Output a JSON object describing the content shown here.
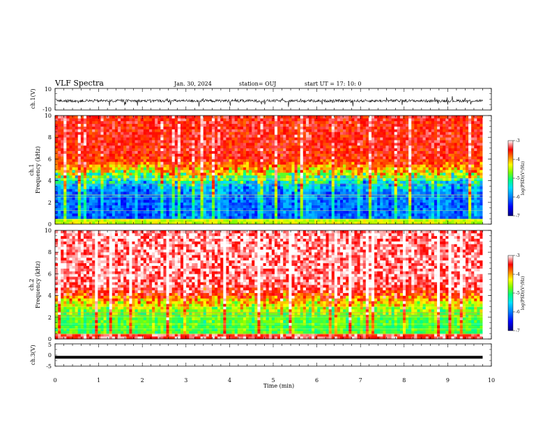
{
  "header": {
    "title": "VLF Spectra",
    "date": "Jan. 30, 2024",
    "station": "station= OUJ",
    "start_ut": "start  UT  =   17: 10: 0"
  },
  "chart_data": [
    {
      "type": "line",
      "panel": "ch1-waveform",
      "ylabel": "ch.1(V)",
      "yticklabels": [
        "10",
        "-10"
      ],
      "ylim": [
        -10,
        10
      ],
      "color": "#000000",
      "baseline": -1.5,
      "noise_amplitude": 2.5,
      "xlim": [
        0,
        10
      ]
    },
    {
      "type": "heatmap",
      "panel": "ch1-spectrogram",
      "ylabel": "ch.1\nFrequency (kHz)",
      "yticklabels": [
        "0",
        "2",
        "4",
        "6",
        "8",
        "10"
      ],
      "ylim": [
        0,
        10
      ],
      "xlim": [
        0,
        9.8
      ],
      "description_values": {
        "high_band_log_psd": -3.5,
        "low_band_log_psd": -6.2,
        "transition_khz": 4.5
      },
      "colorbar": {
        "label": "log(PSD)(V²/Hz)",
        "ticks": [
          "-3",
          "-4",
          "-5",
          "-6",
          "-7"
        ],
        "range": [
          -7,
          -3
        ]
      }
    },
    {
      "type": "heatmap",
      "panel": "ch2-spectrogram",
      "ylabel": "ch.2\nFrequency (kHz)",
      "yticklabels": [
        "0",
        "2",
        "4",
        "6",
        "8",
        "10"
      ],
      "ylim": [
        0,
        10
      ],
      "xlim": [
        0,
        9.8
      ],
      "description_values": {
        "high_band_log_psd": -3.2,
        "low_band_log_psd": -5.0,
        "transition_khz": 3.5
      },
      "colorbar": {
        "label": "log(PSD)(V²/Hz)",
        "ticks": [
          "-3",
          "-4",
          "-5",
          "-6",
          "-7"
        ],
        "range": [
          -7,
          -3
        ]
      }
    },
    {
      "type": "line",
      "panel": "ch3-waveform",
      "ylabel": "ch.3(V)",
      "yticklabels": [
        "5",
        "0",
        "-5"
      ],
      "ylim": [
        -5,
        5
      ],
      "value": -1.0,
      "color": "#000000",
      "xlim": [
        0,
        9.8
      ]
    }
  ],
  "xaxis": {
    "label": "Time (min)",
    "ticks": [
      "0",
      "1",
      "2",
      "3",
      "4",
      "5",
      "6",
      "7",
      "8",
      "9",
      "10"
    ],
    "range": [
      0,
      10
    ]
  },
  "colormap": [
    "#000080",
    "#0000ff",
    "#0080ff",
    "#00e0ff",
    "#00ff80",
    "#80ff00",
    "#ffff00",
    "#ff8000",
    "#ff0000",
    "#ffffff"
  ]
}
